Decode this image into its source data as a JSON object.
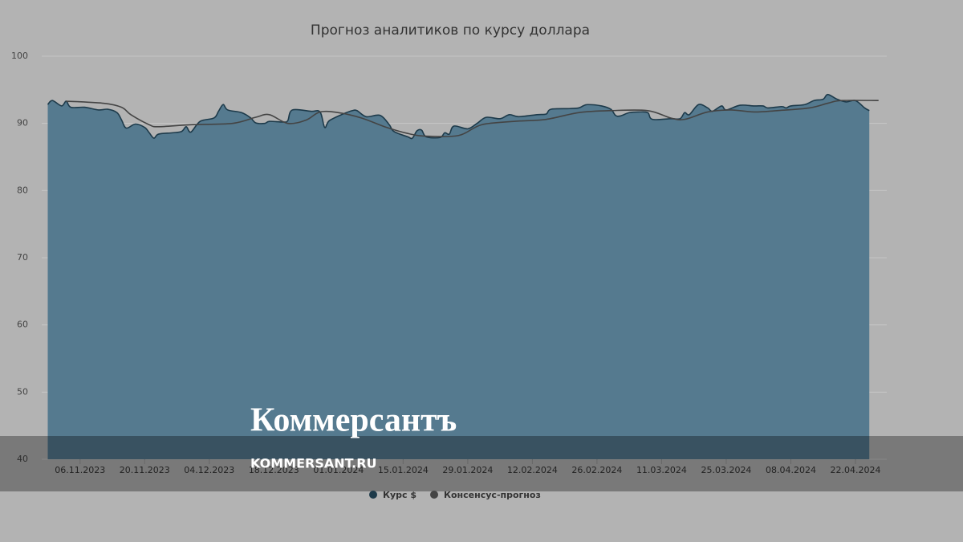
{
  "chart_data": {
    "type": "area-line",
    "title": "Прогноз аналитиков по курсу доллара",
    "ylim": [
      40,
      100
    ],
    "yticks": [
      40,
      50,
      60,
      70,
      80,
      90,
      100
    ],
    "grid": true,
    "xlim": [
      "28.10.2023",
      "28.04.2024"
    ],
    "xticks": [
      "06.11.2023",
      "20.11.2023",
      "04.12.2023",
      "18.12.2023",
      "01.01.2024",
      "15.01.2024",
      "29.01.2024",
      "12.02.2024",
      "26.02.2024",
      "11.03.2024",
      "25.03.2024",
      "08.04.2024",
      "22.04.2024"
    ],
    "series": [
      {
        "name": "Курс $",
        "color": "#557a8f",
        "line_color": "#1d3a4a",
        "x": [
          "30.10.2023",
          "31.10.2023",
          "02.11.2023",
          "03.11.2023",
          "04.11.2023",
          "07.11.2023",
          "10.11.2023",
          "12.11.2023",
          "14.11.2023",
          "15.11.2023",
          "16.11.2023",
          "18.11.2023",
          "20.11.2023",
          "21.11.2023",
          "22.11.2023",
          "23.11.2023",
          "26.11.2023",
          "28.11.2023",
          "29.11.2023",
          "30.11.2023",
          "02.12.2023",
          "05.12.2023",
          "06.12.2023",
          "07.12.2023",
          "08.12.2023",
          "11.12.2023",
          "13.12.2023",
          "14.12.2023",
          "16.12.2023",
          "17.12.2023",
          "20.12.2023",
          "21.12.2023",
          "22.12.2023",
          "26.12.2023",
          "28.12.2023",
          "29.12.2023",
          "30.12.2023",
          "02.01.2024",
          "04.01.2024",
          "05.01.2024",
          "07.01.2024",
          "10.01.2024",
          "12.01.2024",
          "13.01.2024",
          "16.01.2024",
          "17.01.2024",
          "18.01.2024",
          "19.01.2024",
          "20.01.2024",
          "23.01.2024",
          "24.01.2024",
          "25.01.2024",
          "26.01.2024",
          "29.01.2024",
          "31.01.2024",
          "02.02.2024",
          "05.02.2024",
          "07.02.2024",
          "09.02.2024",
          "13.02.2024",
          "15.02.2024",
          "16.02.2024",
          "20.02.2024",
          "22.02.2024",
          "23.02.2024",
          "24.02.2024",
          "27.02.2024",
          "29.02.2024",
          "01.03.2024",
          "02.03.2024",
          "04.03.2024",
          "06.03.2024",
          "08.03.2024",
          "09.03.2024",
          "13.03.2024",
          "15.03.2024",
          "16.03.2024",
          "17.03.2024",
          "19.03.2024",
          "21.03.2024",
          "22.03.2024",
          "24.03.2024",
          "25.03.2024",
          "28.03.2024",
          "31.03.2024",
          "02.04.2024",
          "03.04.2024",
          "06.04.2024",
          "07.04.2024",
          "08.04.2024",
          "11.04.2024",
          "13.04.2024",
          "15.04.2024",
          "16.04.2024",
          "18.04.2024",
          "20.04.2024",
          "22.04.2024",
          "24.04.2024",
          "25.04.2024"
        ],
        "values": [
          92.8,
          93.4,
          92.6,
          93.3,
          92.4,
          92.4,
          92.0,
          92.1,
          91.6,
          90.5,
          89.3,
          89.9,
          89.4,
          88.6,
          87.8,
          88.4,
          88.6,
          88.8,
          89.5,
          88.7,
          90.3,
          90.8,
          91.8,
          92.8,
          92.0,
          91.6,
          90.8,
          90.1,
          90.0,
          90.3,
          90.2,
          90.4,
          92.0,
          91.8,
          91.7,
          89.4,
          90.4,
          91.4,
          91.9,
          91.9,
          91.0,
          91.2,
          89.8,
          88.8,
          88.0,
          87.8,
          88.9,
          89.0,
          88.0,
          87.9,
          88.6,
          88.4,
          89.6,
          89.2,
          90.0,
          90.9,
          90.7,
          91.3,
          91.0,
          91.3,
          91.4,
          92.1,
          92.2,
          92.3,
          92.6,
          92.8,
          92.6,
          92.1,
          91.2,
          91.1,
          91.6,
          91.7,
          91.6,
          90.6,
          90.7,
          90.7,
          91.6,
          91.3,
          92.8,
          92.3,
          91.8,
          92.6,
          92.0,
          92.7,
          92.6,
          92.6,
          92.3,
          92.5,
          92.3,
          92.6,
          92.8,
          93.4,
          93.6,
          94.3,
          93.6,
          93.2,
          93.4,
          92.3,
          91.9
        ]
      },
      {
        "name": "Консенсус-прогноз",
        "color": "#444444",
        "x": [
          "03.11.2023",
          "11.11.2023",
          "15.11.2023",
          "17.11.2023",
          "21.11.2023",
          "23.11.2023",
          "30.11.2023",
          "09.12.2023",
          "14.12.2023",
          "17.12.2023",
          "21.12.2023",
          "25.12.2023",
          "28.12.2023",
          "01.01.2024",
          "06.01.2024",
          "11.01.2024",
          "16.01.2024",
          "20.01.2024",
          "27.01.2024",
          "01.02.2024",
          "08.02.2024",
          "15.02.2024",
          "22.02.2024",
          "29.02.2024",
          "08.03.2024",
          "13.03.2024",
          "16.03.2024",
          "21.03.2024",
          "26.03.2024",
          "31.03.2024",
          "05.04.2024",
          "12.04.2024",
          "16.04.2024",
          "19.04.2024",
          "27.04.2024"
        ],
        "values": [
          93.3,
          93.0,
          92.4,
          91.3,
          89.8,
          89.5,
          89.8,
          90.0,
          90.9,
          91.3,
          90.0,
          90.5,
          91.7,
          91.6,
          90.8,
          89.5,
          88.5,
          88.1,
          88.2,
          89.8,
          90.3,
          90.6,
          91.6,
          91.9,
          91.9,
          90.8,
          90.6,
          91.7,
          92.0,
          91.7,
          91.9,
          92.3,
          93.0,
          93.4,
          93.4
        ]
      }
    ],
    "watermark": {
      "logo": "Коммерсантъ",
      "site": "KOMMERSANT.RU"
    }
  }
}
